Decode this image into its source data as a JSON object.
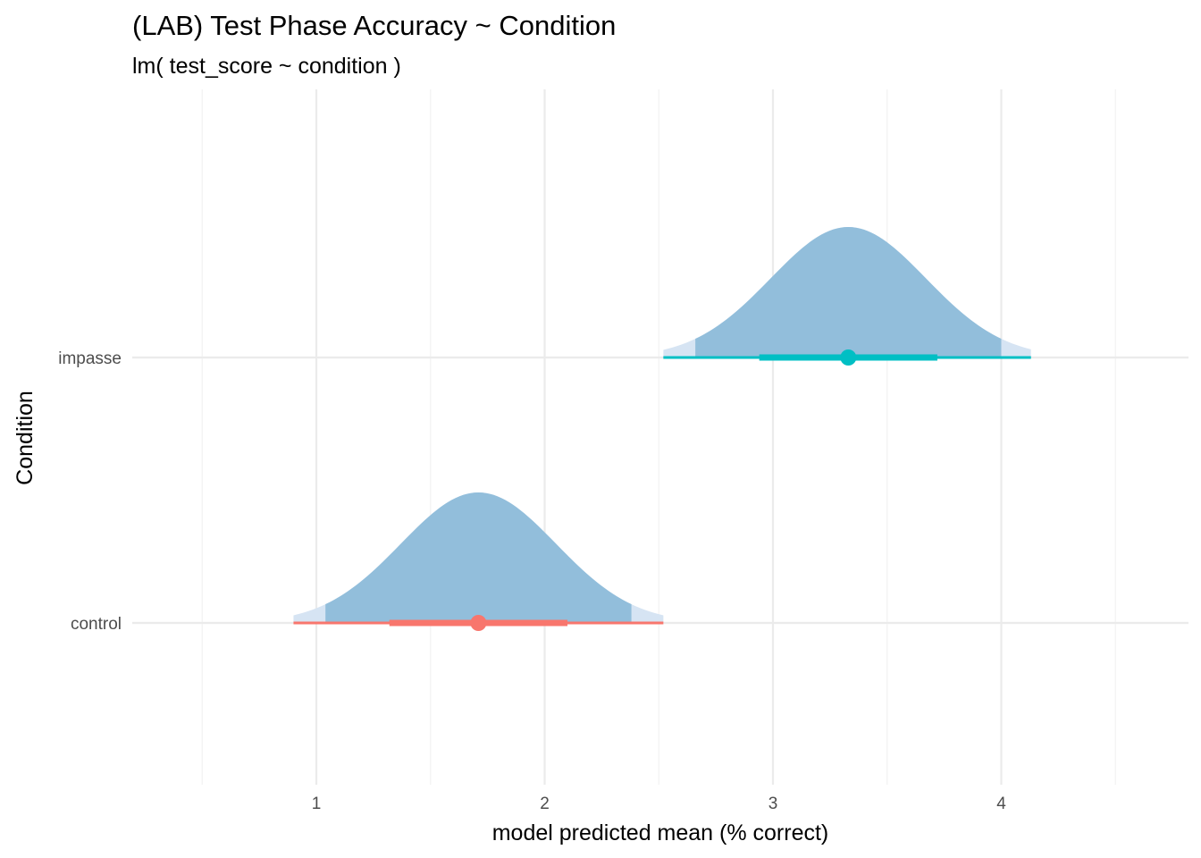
{
  "chart_data": {
    "type": "halfeye",
    "title": "(LAB) Test Phase Accuracy ~ Condition",
    "subtitle": "lm( test_score ~ condition )",
    "xlabel": "model predicted mean (% correct)",
    "ylabel": "Condition",
    "xlim": [
      0.3,
      4.8
    ],
    "x_ticks": [
      1,
      2,
      3,
      4
    ],
    "x_tick_labels": [
      "1",
      "2",
      "3",
      "4"
    ],
    "categories": [
      "control",
      "impasse"
    ],
    "grid": true,
    "legend": "none",
    "series": [
      {
        "category": "control",
        "mean": 1.71,
        "sd": 0.34,
        "ci66": [
          1.32,
          2.1
        ],
        "ci95": [
          1.04,
          2.38
        ],
        "range": [
          0.9,
          2.52
        ],
        "color": "#F8766D"
      },
      {
        "category": "impasse",
        "mean": 3.33,
        "sd": 0.34,
        "ci66": [
          2.94,
          3.72
        ],
        "ci95": [
          2.66,
          4.0
        ],
        "range": [
          2.52,
          4.13
        ],
        "color": "#00BFC4"
      }
    ],
    "colors": {
      "density_inner": "#92BEDB",
      "density_outer": "#D6E4F3",
      "grid_major": "#EBEBEB",
      "grid_minor": "#F2F2F2"
    }
  }
}
